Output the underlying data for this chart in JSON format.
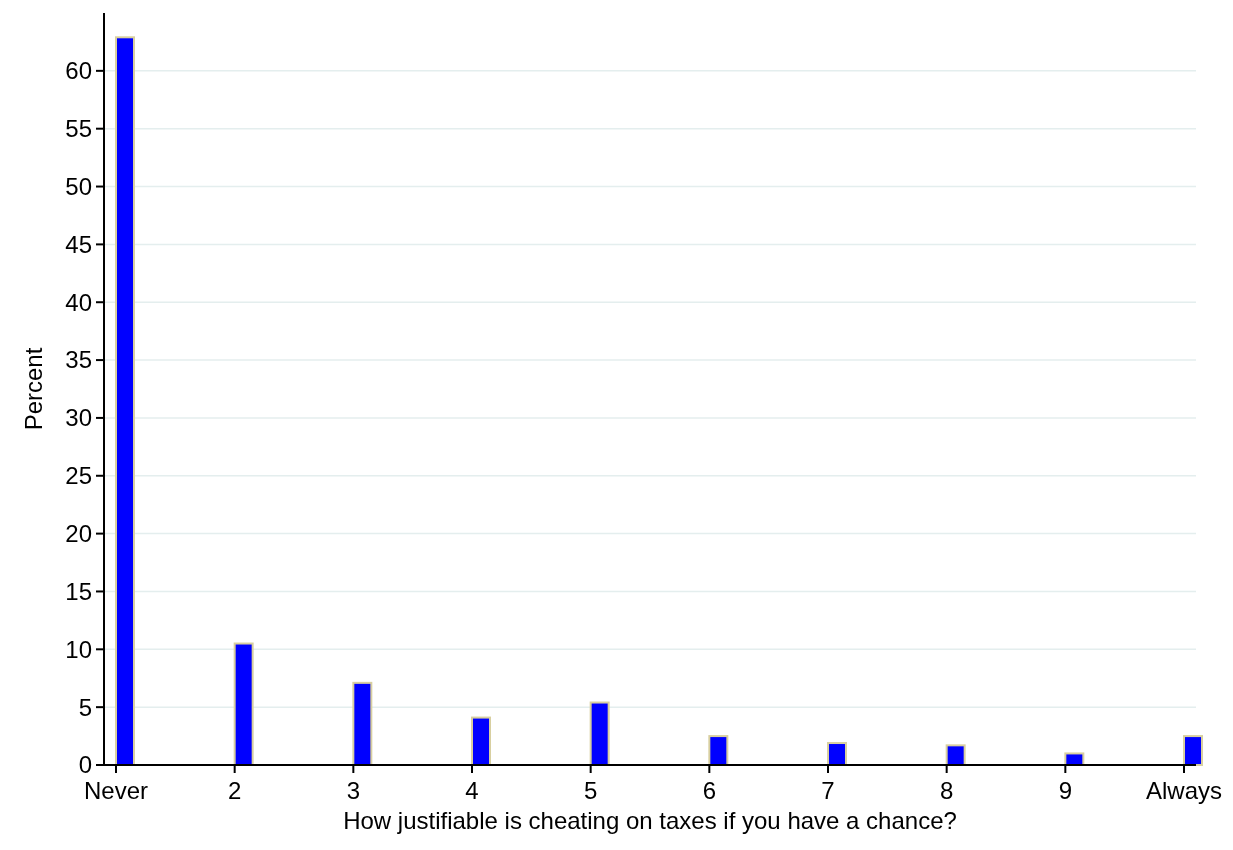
{
  "chart_data": {
    "type": "bar",
    "xlabel": "How justifiable is cheating on taxes if you have a chance?",
    "ylabel": "Percent",
    "categories": [
      "Never",
      "2",
      "3",
      "4",
      "5",
      "6",
      "7",
      "8",
      "9",
      "Always"
    ],
    "values": [
      62.9,
      10.5,
      7.1,
      4.1,
      5.4,
      2.5,
      1.9,
      1.7,
      1.0,
      2.5
    ],
    "color": "#0000ff",
    "ylim": [
      0,
      65
    ],
    "yticks": [
      0,
      5,
      10,
      15,
      20,
      25,
      30,
      35,
      40,
      45,
      50,
      55,
      60
    ],
    "grid": "y"
  }
}
